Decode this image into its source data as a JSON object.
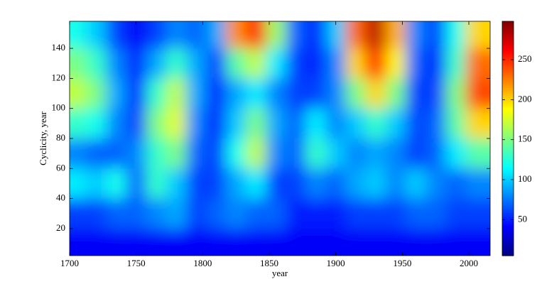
{
  "chart_data": {
    "type": "heatmap",
    "x_label": "year",
    "y_label": "Cyclicity, year",
    "x": [
      1705,
      1720,
      1735,
      1750,
      1765,
      1780,
      1795,
      1810,
      1825,
      1840,
      1855,
      1870,
      1885,
      1900,
      1915,
      1930,
      1945,
      1960,
      1975,
      1990,
      2005
    ],
    "y": [
      150,
      130,
      110,
      90,
      70,
      50,
      30,
      10
    ],
    "z": [
      [
        120,
        100,
        60,
        40,
        60,
        80,
        70,
        90,
        220,
        250,
        160,
        70,
        50,
        100,
        230,
        280,
        210,
        80,
        60,
        120,
        200
      ],
      [
        150,
        130,
        80,
        50,
        90,
        130,
        90,
        60,
        140,
        170,
        110,
        60,
        50,
        80,
        200,
        260,
        190,
        70,
        50,
        130,
        230
      ],
      [
        170,
        150,
        90,
        50,
        130,
        170,
        90,
        50,
        90,
        110,
        80,
        60,
        60,
        80,
        150,
        200,
        150,
        60,
        60,
        150,
        240
      ],
      [
        130,
        120,
        80,
        60,
        150,
        180,
        80,
        50,
        100,
        150,
        90,
        70,
        110,
        80,
        100,
        130,
        100,
        60,
        70,
        140,
        200
      ],
      [
        80,
        70,
        70,
        80,
        130,
        150,
        70,
        60,
        120,
        170,
        80,
        70,
        130,
        100,
        80,
        90,
        80,
        60,
        70,
        110,
        140
      ],
      [
        110,
        100,
        120,
        70,
        130,
        100,
        60,
        60,
        90,
        110,
        60,
        60,
        80,
        70,
        90,
        100,
        80,
        100,
        80,
        70,
        80
      ],
      [
        60,
        60,
        70,
        70,
        80,
        90,
        60,
        70,
        80,
        70,
        70,
        50,
        50,
        50,
        60,
        60,
        60,
        70,
        70,
        60,
        60
      ],
      [
        40,
        40,
        40,
        40,
        40,
        40,
        40,
        40,
        40,
        40,
        40,
        40,
        40,
        40,
        40,
        40,
        40,
        40,
        40,
        40,
        40
      ]
    ],
    "colormap": "jet",
    "xlim": [
      1700,
      2016
    ],
    "xticks": [
      1700,
      1750,
      1800,
      1850,
      1900,
      1950,
      2000
    ],
    "ylim": [
      2,
      158
    ],
    "yticks": [
      20,
      40,
      60,
      80,
      100,
      120,
      140
    ],
    "colorbar": {
      "lim": [
        5,
        298
      ],
      "ticks": [
        50,
        100,
        150,
        200,
        250
      ]
    }
  }
}
